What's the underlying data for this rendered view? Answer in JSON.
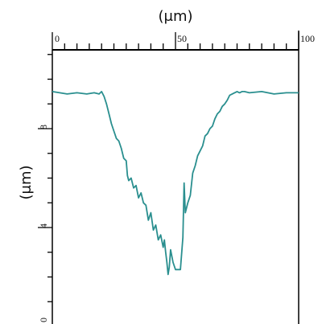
{
  "chart_data": {
    "type": "line",
    "title": "",
    "xlabel": "(μm)",
    "ylabel": "(μm)",
    "xlim": [
      0,
      100
    ],
    "ylim": [
      0,
      12
    ],
    "x_tick_labels": [
      "0",
      "50",
      "100"
    ],
    "y_tick_labels": [
      "0",
      "4",
      "8"
    ],
    "grid": false,
    "series_color": "#2a8f8f",
    "series": [
      {
        "x": [
          0,
          3,
          6,
          10,
          14,
          17,
          19,
          20,
          21,
          22,
          23,
          24,
          25,
          26,
          27,
          28,
          29,
          30,
          30.5,
          31,
          32,
          33,
          34,
          35,
          36,
          37,
          38,
          39,
          40,
          41,
          42,
          43,
          44,
          45,
          45.5,
          46,
          46.5,
          47,
          47.5,
          48,
          49,
          50,
          51,
          52,
          53,
          53.5,
          54,
          55,
          56,
          57,
          58,
          59,
          60,
          61,
          62,
          63,
          64,
          65,
          66,
          67,
          68,
          69,
          70,
          71,
          72,
          73,
          74,
          75,
          76,
          77,
          78,
          80,
          85,
          90,
          95,
          100
        ],
        "y": [
          9.5,
          9.45,
          9.4,
          9.45,
          9.4,
          9.45,
          9.4,
          9.5,
          9.3,
          9.0,
          8.6,
          8.2,
          7.9,
          7.6,
          7.5,
          7.2,
          6.8,
          6.7,
          6.1,
          5.9,
          6.0,
          5.6,
          5.7,
          5.2,
          5.4,
          5.0,
          4.9,
          4.3,
          4.6,
          3.9,
          4.1,
          3.5,
          3.7,
          3.2,
          3.5,
          3.0,
          2.6,
          2.1,
          2.4,
          3.1,
          2.6,
          2.3,
          2.3,
          2.3,
          3.6,
          5.8,
          4.6,
          5.0,
          5.3,
          6.2,
          6.5,
          6.9,
          7.1,
          7.3,
          7.7,
          7.8,
          8.0,
          8.1,
          8.4,
          8.6,
          8.7,
          8.9,
          9.0,
          9.15,
          9.35,
          9.4,
          9.45,
          9.5,
          9.45,
          9.5,
          9.5,
          9.45,
          9.5,
          9.4,
          9.45,
          9.45
        ]
      }
    ]
  }
}
